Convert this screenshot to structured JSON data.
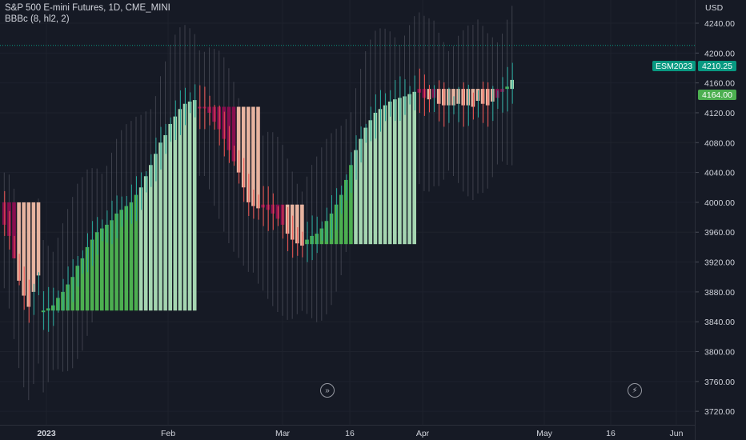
{
  "header": {
    "title": "S&P 500 E-mini Futures, 1D, CME_MINI",
    "indicator": "BBBc (8, hl2, 2)"
  },
  "price_axis": {
    "currency": "USD",
    "ticks": [
      "4240.00",
      "4200.00",
      "4160.00",
      "4120.00",
      "4080.00",
      "4040.00",
      "4000.00",
      "3960.00",
      "3920.00",
      "3880.00",
      "3840.00",
      "3800.00",
      "3760.00",
      "3720.00"
    ]
  },
  "time_axis": {
    "labels": [
      "2023",
      "Feb",
      "Mar",
      "16",
      "Apr",
      "May",
      "16",
      "Jun"
    ]
  },
  "price_labels": {
    "symbol": "ESM2023",
    "last_price": "4210.25",
    "indicator_value": "4164.00"
  },
  "icons": {
    "scroll": "double-chevron-right-icon",
    "lightning": "lightning-icon"
  },
  "colors": {
    "background": "#161a25",
    "bull_dark": "#4caf50",
    "bull_light": "#a5d6b1",
    "bear_dark": "#880e4f",
    "bear_light": "#e8b4a0",
    "candle_up": "#26a69a",
    "candle_down": "#ef5350",
    "band": "#5d606b",
    "last_price": "#089981"
  },
  "chart_data": {
    "type": "bar",
    "y_range": [
      3695,
      4262
    ],
    "y_ticks": [
      4240,
      4200,
      4160,
      4120,
      4080,
      4040,
      4000,
      3960,
      3920,
      3880,
      3840,
      3800,
      3760,
      3720
    ],
    "last_price": 4210.25,
    "indicator_last_value": 4164.0,
    "series": [
      {
        "name": "BBBc (8, hl2, 2)",
        "segments": [
          {
            "base": 4000,
            "values": [
              3970,
              3955,
              3925,
              3895,
              3875,
              3860,
              3880,
              3902
            ]
          },
          {
            "base": 3855,
            "values": [
              3855,
              3858,
              3862,
              3872,
              3880,
              3890,
              3900,
              3915,
              3925,
              3940,
              3950,
              3960,
              3965,
              3970,
              3976,
              3985,
              3990,
              3995,
              4000,
              4010,
              4020,
              4035,
              4050,
              4065,
              4080,
              4090,
              4105,
              4115,
              4125,
              4132,
              4135,
              4137
            ]
          },
          {
            "base": 4128,
            "values": [
              4127,
              4126,
              4120,
              4108,
              4098,
              4085,
              4070,
              4055,
              4040,
              4020,
              4000,
              3995,
              3992
            ]
          },
          {
            "base": 3997,
            "values": [
              3993,
              3990,
              3985,
              3978,
              3970,
              3958,
              3950,
              3945,
              3942
            ]
          },
          {
            "base": 3944,
            "values": [
              3950,
              3955,
              3958,
              3965,
              3975,
              3985,
              3997,
              4010,
              4030,
              4050,
              4070,
              4085,
              4100,
              4110,
              4120,
              4125,
              4130,
              4135,
              4138,
              4140,
              4142,
              4145,
              4148
            ]
          },
          {
            "base": 4152,
            "values": [
              4147,
              4140,
              4138,
              4140,
              4132,
              4130,
              4130,
              4130,
              4132,
              4130,
              4130,
              4128,
              4136,
              4132,
              4130,
              4135,
              4140,
              4148,
              4155,
              4164
            ]
          }
        ]
      }
    ]
  }
}
